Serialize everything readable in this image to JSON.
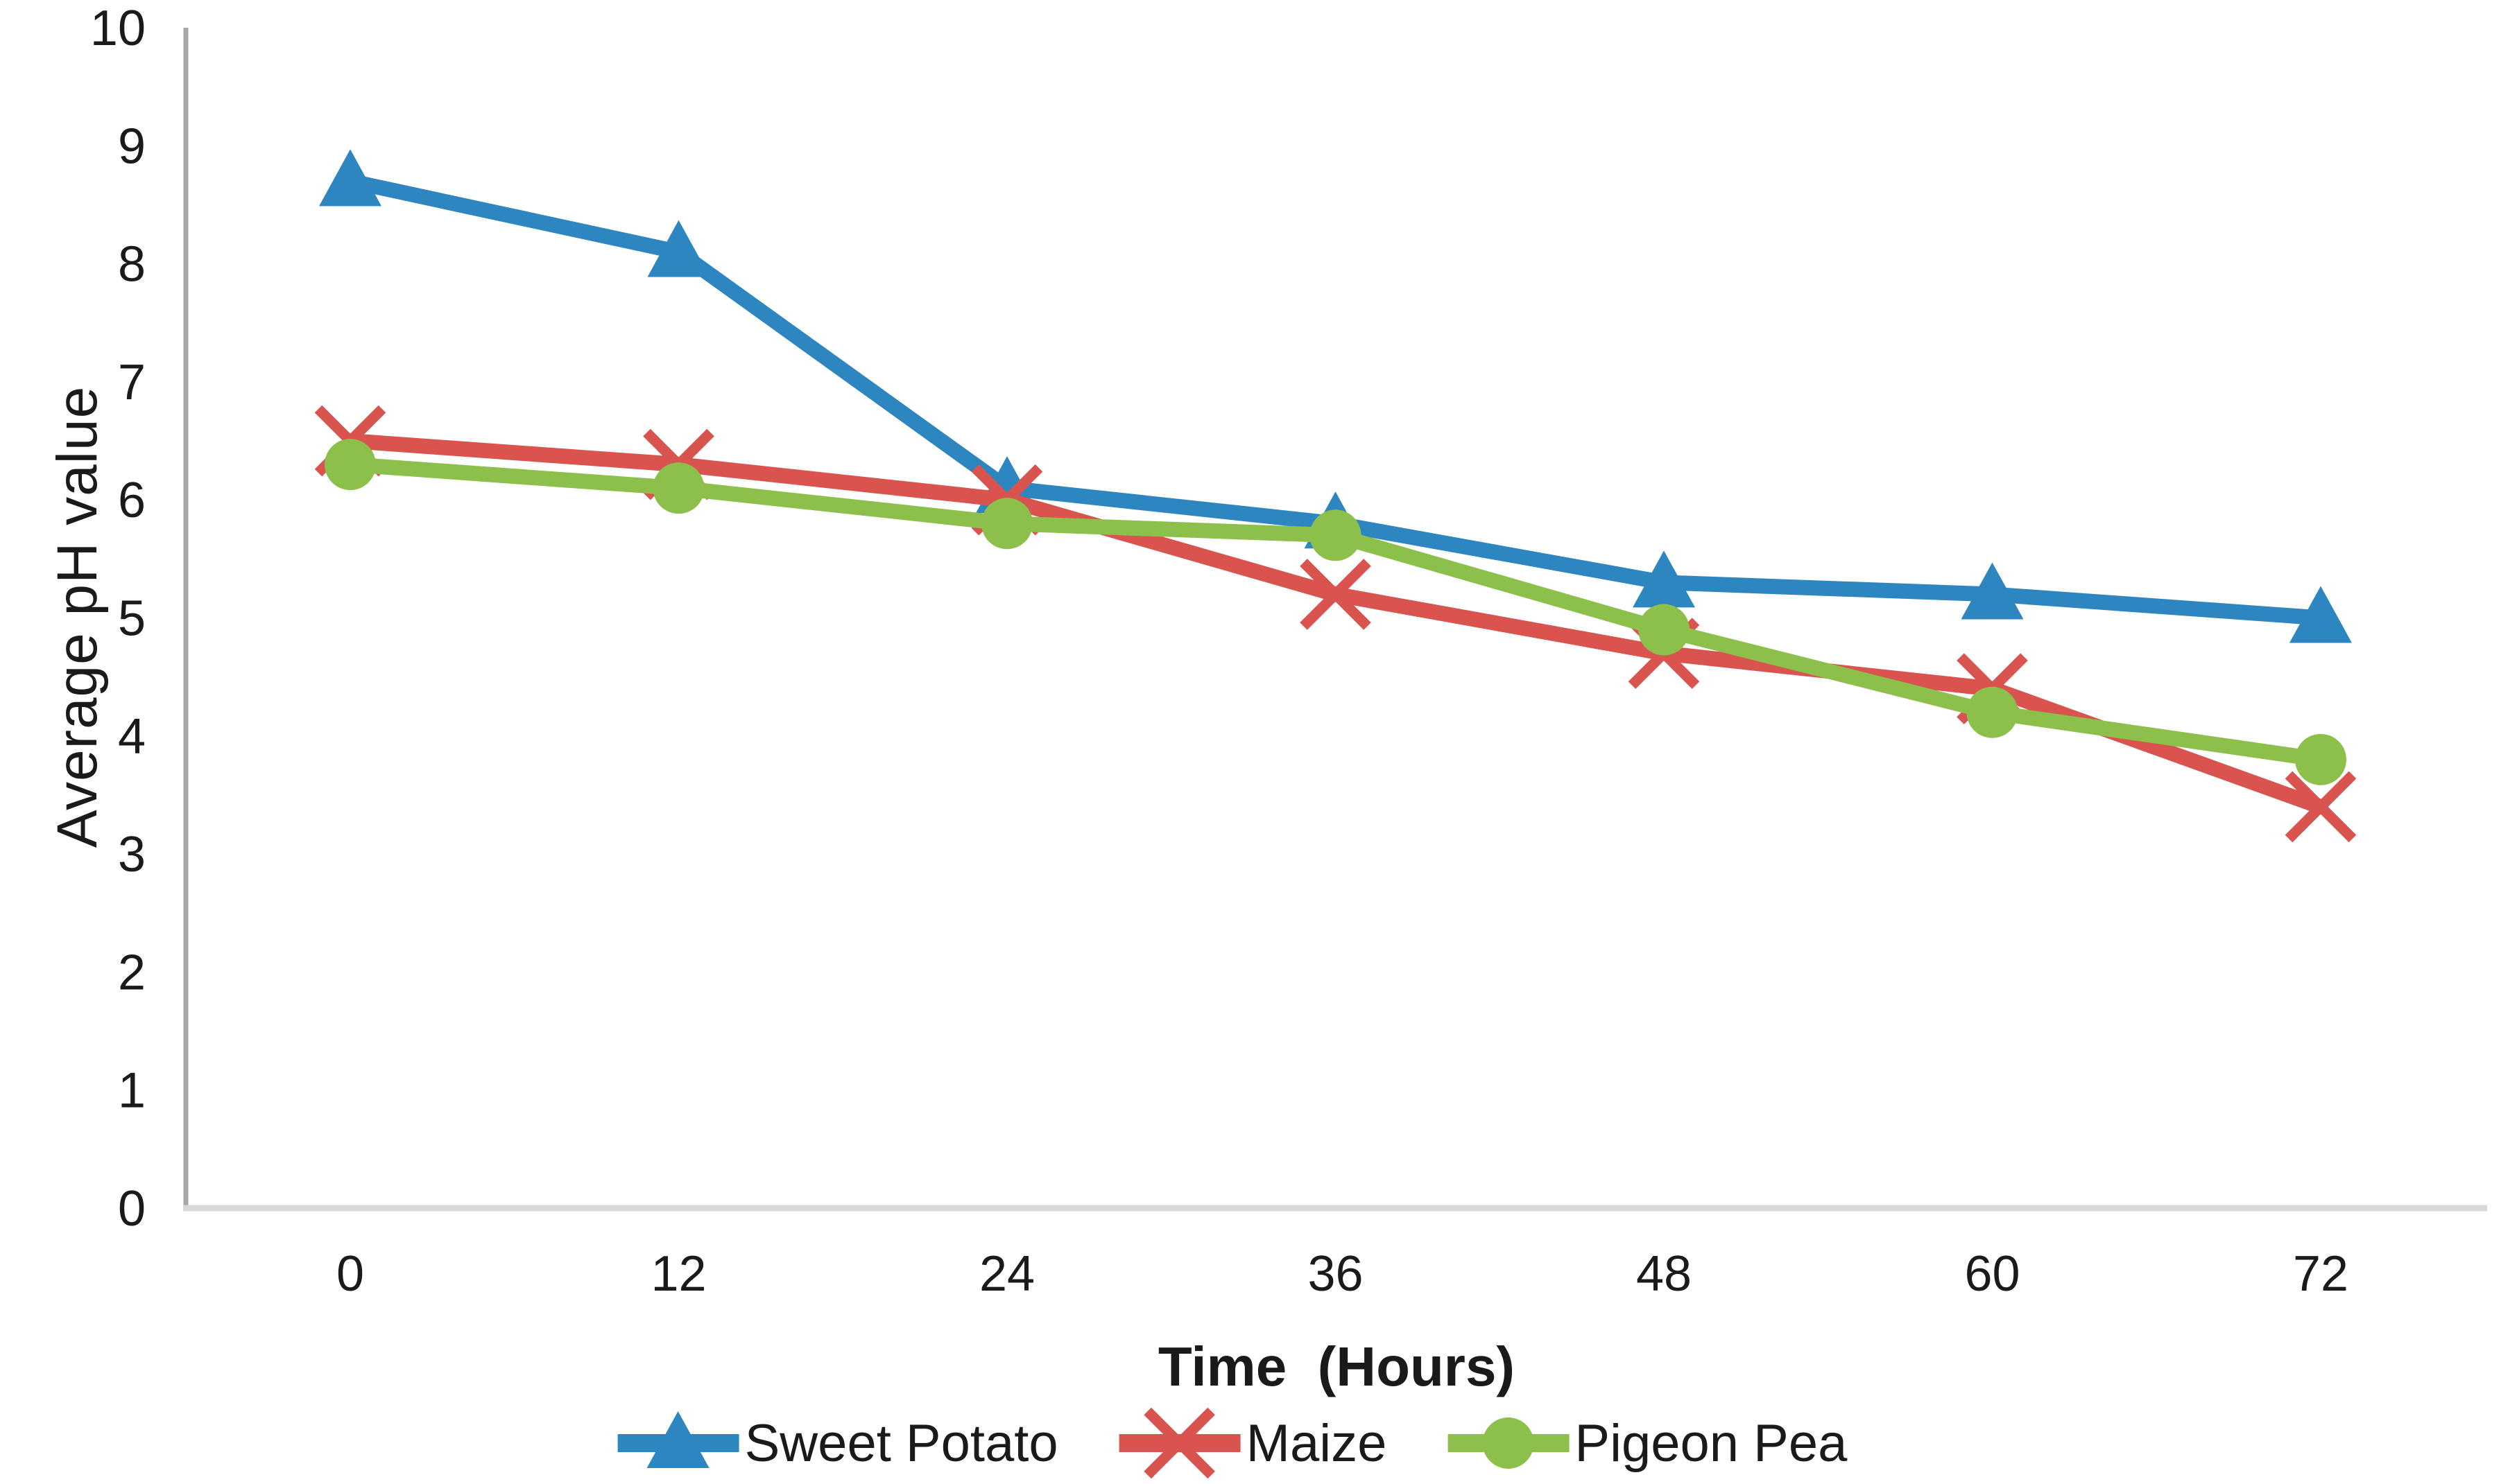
{
  "figure": {
    "background_color": "#ffffff",
    "text_color": "#1a1a1a"
  },
  "y_axis": {
    "title": "Average pH value",
    "min": 0,
    "max": 10,
    "step": 1,
    "tick_labels": [
      "0",
      "1",
      "2",
      "3",
      "4",
      "5",
      "6",
      "7",
      "8",
      "9",
      "10"
    ],
    "line_color": "#a6a6a6"
  },
  "x_axis": {
    "title": "Time  (Hours)",
    "tick_labels": [
      "0",
      "12",
      "24",
      "36",
      "48",
      "60",
      "72"
    ],
    "line_color": "#d9d9d9"
  },
  "legend": {
    "position": "bottom",
    "items": [
      "Sweet Potato",
      "Maize",
      "Pigeon Pea"
    ]
  },
  "chart_data": {
    "type": "line",
    "x": [
      0,
      12,
      24,
      36,
      48,
      60,
      72
    ],
    "xlabel": "Time  (Hours)",
    "ylabel": "Average pH value",
    "ylim": [
      0,
      10
    ],
    "xlim": [
      0,
      72
    ],
    "grid": false,
    "legend_position": "bottom",
    "series": [
      {
        "name": "Sweet Potato",
        "color": "#2e86c1",
        "marker": "triangle",
        "values": [
          8.7,
          8.1,
          6.1,
          5.8,
          5.3,
          5.2,
          5.0
        ]
      },
      {
        "name": "Maize",
        "color": "#d9534f",
        "marker": "x",
        "values": [
          6.5,
          6.3,
          6.0,
          5.2,
          4.7,
          4.4,
          3.4
        ]
      },
      {
        "name": "Pigeon Pea",
        "color": "#8dc04b",
        "marker": "circle",
        "values": [
          6.3,
          6.1,
          5.8,
          5.7,
          4.9,
          4.2,
          3.8
        ]
      }
    ]
  }
}
